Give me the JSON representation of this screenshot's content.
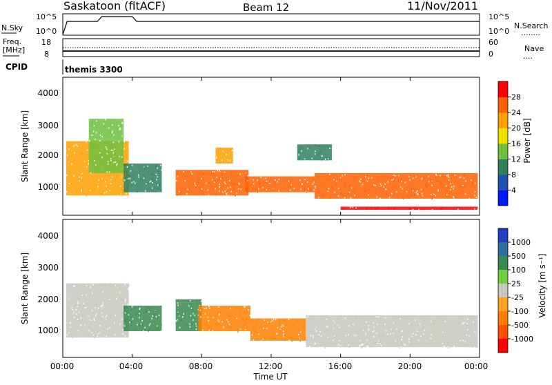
{
  "header": {
    "station": "Saskatoon (fitACF)",
    "beam": "Beam 12",
    "date": "11/Nov/2011"
  },
  "nsky_panel": {
    "left_label": "N.Sky",
    "left_ticks": [
      "10^5",
      "10^0"
    ],
    "right_ticks": [
      "10^5",
      "10^0"
    ],
    "right_label": "N.Search",
    "right_legend": "........"
  },
  "freq_panel": {
    "left_label_line1": "Freq.",
    "left_label_line2": "[MHz]",
    "left_ticks": [
      "18",
      "8"
    ],
    "right_ticks": [
      "60",
      "0"
    ],
    "right_label": "Nave",
    "right_legend": "...."
  },
  "cpid_panel": {
    "label": "CPID",
    "program": "themis 3300"
  },
  "power_panel": {
    "ylabel": "Slant Range [km]",
    "yticks": [
      "1000",
      "2000",
      "3000",
      "4000"
    ],
    "colorbar_label": "Power [dB]",
    "colorbar_ticks": [
      "4",
      "8",
      "12",
      "16",
      "20",
      "24",
      "28"
    ],
    "colorbar_colors": [
      "#0018ff",
      "#2050b0",
      "#308060",
      "#70c040",
      "#f0e000",
      "#ffa000",
      "#ff6000",
      "#ff0000"
    ]
  },
  "velocity_panel": {
    "ylabel": "Slant Range [km]",
    "yticks": [
      "1000",
      "2000",
      "3000",
      "4000"
    ],
    "colorbar_label": "Velocity [m s⁻¹]",
    "colorbar_ticks": [
      "1000",
      "500",
      "100",
      "25",
      "-25",
      "-100",
      "-500",
      "-1000"
    ],
    "colorbar_colors": [
      "#2040c0",
      "#2c6fa0",
      "#3a8a50",
      "#70d040",
      "#c8c8c0",
      "#ffa020",
      "#ff8000",
      "#ff5000",
      "#ff0000"
    ]
  },
  "time_axis": {
    "xlabel": "Time UT",
    "xticks": [
      "00:00",
      "04:00",
      "08:00",
      "12:00",
      "16:00",
      "20:00",
      "00:00"
    ]
  },
  "chart_data": [
    {
      "type": "heatmap",
      "title": "Power",
      "xlabel": "Time UT",
      "ylabel": "Slant Range [km]",
      "xlim_hours": [
        0,
        24
      ],
      "ylim": [
        180,
        4500
      ],
      "colorbar": {
        "label": "Power [dB]",
        "range": [
          0,
          32
        ],
        "ticks": [
          4,
          8,
          12,
          16,
          20,
          24,
          28
        ]
      },
      "patches": [
        {
          "t": [
            0.2,
            3.8
          ],
          "r": [
            800,
            2500
          ],
          "level": 22
        },
        {
          "t": [
            1.5,
            3.5
          ],
          "r": [
            1500,
            3200
          ],
          "level": 12
        },
        {
          "t": [
            3.5,
            5.7
          ],
          "r": [
            900,
            1800
          ],
          "level": 10
        },
        {
          "t": [
            6.5,
            10.7
          ],
          "r": [
            800,
            1600
          ],
          "level": 27
        },
        {
          "t": [
            8.8,
            9.8
          ],
          "r": [
            1800,
            2300
          ],
          "level": 20
        },
        {
          "t": [
            10.5,
            14.5
          ],
          "r": [
            900,
            1400
          ],
          "level": 24
        },
        {
          "t": [
            14.5,
            23.9
          ],
          "r": [
            700,
            1500
          ],
          "level": 25
        },
        {
          "t": [
            16.0,
            23.9
          ],
          "r": [
            350,
            450
          ],
          "level": 28
        },
        {
          "t": [
            13.5,
            15.5
          ],
          "r": [
            1900,
            2400
          ],
          "level": 8
        }
      ]
    },
    {
      "type": "heatmap",
      "title": "Velocity",
      "xlabel": "Time UT",
      "ylabel": "Slant Range [km]",
      "xlim_hours": [
        0,
        24
      ],
      "ylim": [
        180,
        4500
      ],
      "colorbar": {
        "label": "Velocity [m s⁻¹]",
        "ticks": [
          1000,
          500,
          100,
          25,
          -25,
          -100,
          -500,
          -1000
        ]
      },
      "patches": [
        {
          "t": [
            0.2,
            3.8
          ],
          "r": [
            800,
            2500
          ],
          "v": 0
        },
        {
          "t": [
            3.5,
            5.7
          ],
          "r": [
            1000,
            1800
          ],
          "v": 150
        },
        {
          "t": [
            6.5,
            8.0
          ],
          "r": [
            1000,
            2000
          ],
          "v": 150
        },
        {
          "t": [
            7.8,
            10.8
          ],
          "r": [
            1000,
            1800
          ],
          "v": -400
        },
        {
          "t": [
            10.8,
            14.0
          ],
          "r": [
            700,
            1400
          ],
          "v": -150
        },
        {
          "t": [
            14.0,
            23.9
          ],
          "r": [
            500,
            1500
          ],
          "v": 0
        }
      ]
    }
  ]
}
